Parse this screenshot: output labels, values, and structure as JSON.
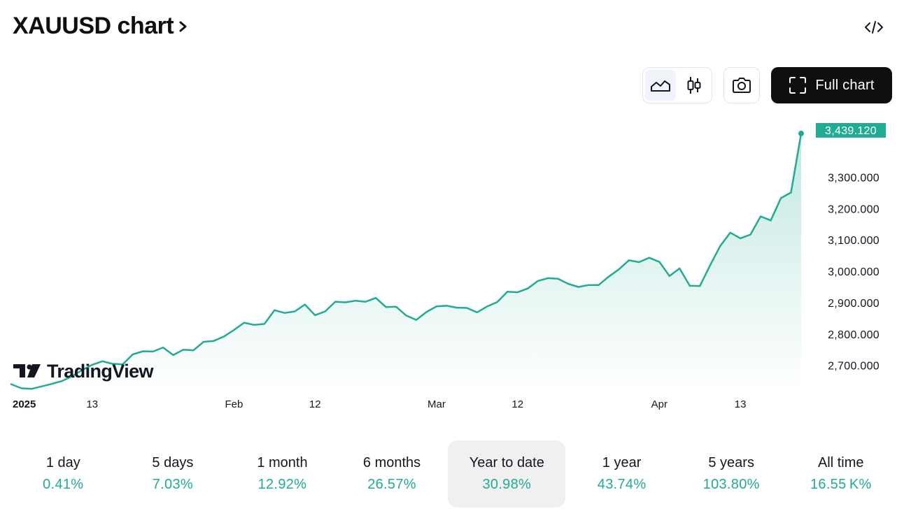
{
  "header": {
    "title": "XAUUSD chart"
  },
  "toolbar": {
    "full_chart_label": "Full chart"
  },
  "icons": {
    "title_chevron": "chevron-right-icon",
    "embed": "code-embed-icon",
    "area_chart": "area-chart-icon",
    "candles": "candlestick-icon",
    "snapshot": "camera-icon",
    "fullscreen": "fullscreen-icon"
  },
  "colors": {
    "line": "#22ab94",
    "price_badge": "#22ab94",
    "positive": "#22ab94",
    "button_dark": "#0f0f0f"
  },
  "watermark": {
    "text": "TradingView"
  },
  "chart_data": {
    "type": "area",
    "x_tick_labels": [
      {
        "label": "2025",
        "x": 0.5,
        "bold": true
      },
      {
        "label": "13",
        "x": 8
      },
      {
        "label": "Feb",
        "x": 22
      },
      {
        "label": "12",
        "x": 30
      },
      {
        "label": "Mar",
        "x": 42
      },
      {
        "label": "12",
        "x": 50
      },
      {
        "label": "Apr",
        "x": 64
      },
      {
        "label": "13",
        "x": 72
      }
    ],
    "y_tick_labels": [
      "3,300.000",
      "3,200.000",
      "3,100.000",
      "3,000.000",
      "2,900.000",
      "2,800.000",
      "2,700.000"
    ],
    "y_ticks": [
      3300,
      3200,
      3100,
      3000,
      2900,
      2800,
      2700
    ],
    "ylim": [
      2628,
      3508
    ],
    "xlim": [
      0,
      78
    ],
    "last_value_label": "3,439.120",
    "last_value": 3439.12,
    "series": [
      {
        "values": [
          2640,
          2627,
          2625,
          2633,
          2641,
          2650,
          2665,
          2685,
          2702,
          2713,
          2705,
          2703,
          2735,
          2745,
          2744,
          2757,
          2733,
          2750,
          2748,
          2775,
          2778,
          2792,
          2813,
          2836,
          2829,
          2832,
          2876,
          2867,
          2872,
          2894,
          2860,
          2872,
          2903,
          2901,
          2906,
          2903,
          2915,
          2886,
          2887,
          2859,
          2845,
          2870,
          2888,
          2890,
          2884,
          2883,
          2869,
          2888,
          2902,
          2935,
          2933,
          2945,
          2969,
          2978,
          2976,
          2960,
          2950,
          2956,
          2956,
          2983,
          3006,
          3035,
          3029,
          3043,
          3030,
          2985,
          3009,
          2954,
          2953,
          3018,
          3080,
          3123,
          3105,
          3117,
          3175,
          3162,
          3233,
          3251,
          3439.12
        ]
      }
    ]
  },
  "periods": [
    {
      "label": "1 day",
      "value": "0.41%"
    },
    {
      "label": "5 days",
      "value": "7.03%"
    },
    {
      "label": "1 month",
      "value": "12.92%"
    },
    {
      "label": "6 months",
      "value": "26.57%"
    },
    {
      "label": "Year to date",
      "value": "30.98%",
      "active": true
    },
    {
      "label": "1 year",
      "value": "43.74%"
    },
    {
      "label": "5 years",
      "value": "103.80%"
    },
    {
      "label": "All time",
      "value": "16.55 K%"
    }
  ]
}
